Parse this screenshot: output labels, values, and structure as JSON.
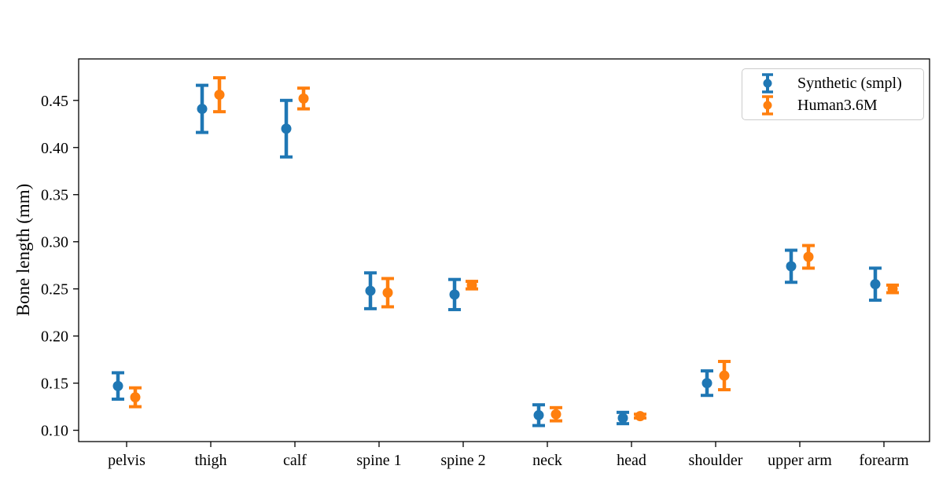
{
  "chart_data": {
    "type": "errorbar",
    "title": "",
    "xlabel": "",
    "ylabel": "Bone length (mm)",
    "categories": [
      "pelvis",
      "thigh",
      "calf",
      "spine 1",
      "spine 2",
      "neck",
      "head",
      "shoulder",
      "upper arm",
      "forearm"
    ],
    "series": [
      {
        "name": "Synthetic (smpl)",
        "color": "#1f77b4",
        "values": [
          0.147,
          0.441,
          0.42,
          0.248,
          0.244,
          0.116,
          0.113,
          0.15,
          0.274,
          0.255
        ],
        "errors": [
          0.014,
          0.025,
          0.03,
          0.019,
          0.016,
          0.011,
          0.006,
          0.013,
          0.017,
          0.017
        ]
      },
      {
        "name": "Human3.6M",
        "color": "#ff7f0e",
        "values": [
          0.135,
          0.456,
          0.452,
          0.246,
          0.254,
          0.117,
          0.115,
          0.158,
          0.284,
          0.25
        ],
        "errors": [
          0.01,
          0.018,
          0.011,
          0.015,
          0.004,
          0.007,
          0.002,
          0.015,
          0.012,
          0.004
        ]
      }
    ],
    "yticks": [
      0.1,
      0.15,
      0.2,
      0.25,
      0.3,
      0.35,
      0.4,
      0.45
    ],
    "ylim": [
      0.088,
      0.494
    ],
    "grid": false,
    "legend_position": "upper right"
  }
}
